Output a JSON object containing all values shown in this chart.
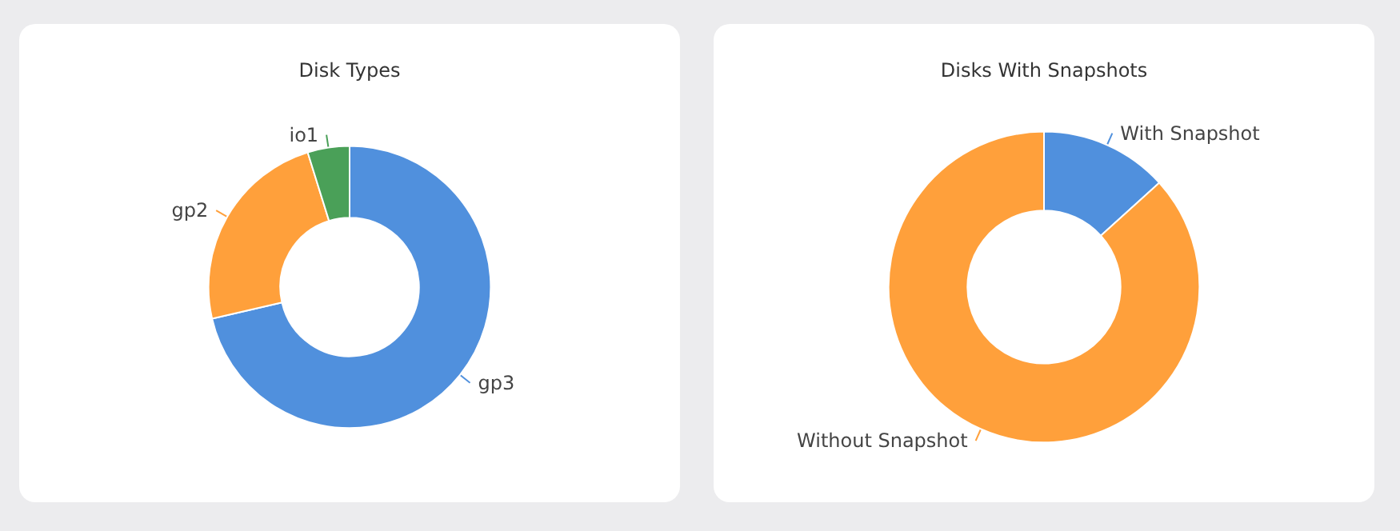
{
  "chart_data": [
    {
      "type": "donut",
      "title": "Disk Types",
      "categories": [
        "gp3",
        "gp2",
        "io1"
      ],
      "values": [
        71.4,
        23.8,
        4.8
      ],
      "colors": [
        "#5090dd",
        "#ffa03b",
        "#4aa058"
      ]
    },
    {
      "type": "donut",
      "title": "Disks With Snapshots",
      "categories": [
        "With Snapshot",
        "Without Snapshot"
      ],
      "values": [
        13.3,
        86.7
      ],
      "colors": [
        "#5090dd",
        "#ffa03b"
      ]
    }
  ]
}
